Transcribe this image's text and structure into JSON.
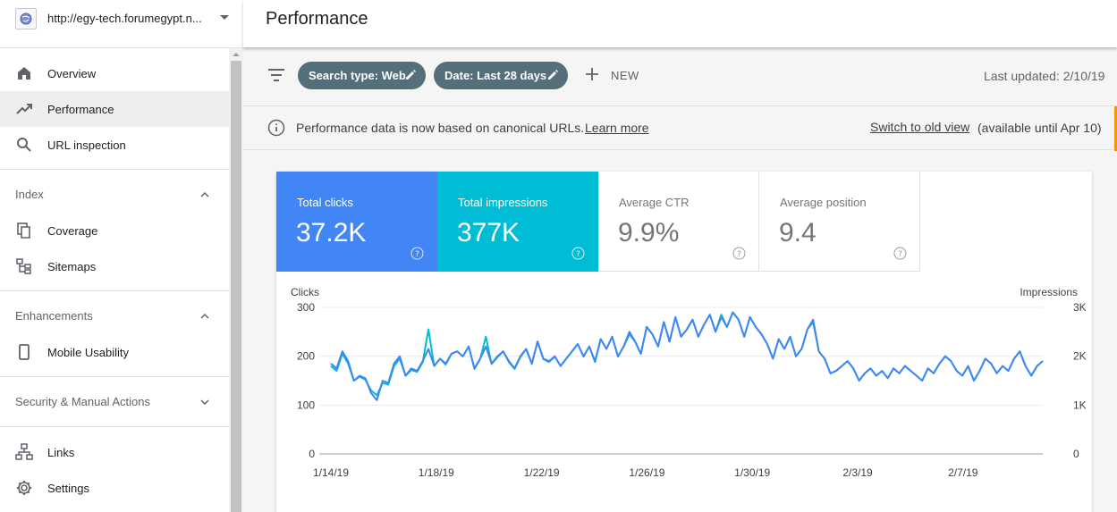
{
  "sidebar": {
    "property_url": "http://egy-tech.forumegypt.n...",
    "items": [
      {
        "label": "Overview",
        "icon": "home-icon"
      },
      {
        "label": "Performance",
        "icon": "trending-up-icon",
        "active": true
      },
      {
        "label": "URL inspection",
        "icon": "search-icon"
      }
    ],
    "sections": {
      "index": {
        "label": "Index",
        "items": [
          {
            "label": "Coverage",
            "icon": "copy-icon"
          },
          {
            "label": "Sitemaps",
            "icon": "sitemap-icon"
          }
        ]
      },
      "enhancements": {
        "label": "Enhancements",
        "items": [
          {
            "label": "Mobile Usability",
            "icon": "phone-icon"
          }
        ]
      },
      "security": {
        "label": "Security & Manual Actions"
      }
    },
    "bottom_items": [
      {
        "label": "Links",
        "icon": "links-icon"
      },
      {
        "label": "Settings",
        "icon": "gear-icon"
      }
    ]
  },
  "header": {
    "title": "Performance"
  },
  "toolbar": {
    "chip_search_type": "Search type: Web",
    "chip_date": "Date: Last 28 days",
    "new_label": "NEW",
    "last_updated": "Last updated: 2/10/19"
  },
  "notice": {
    "message": "Performance data is now based on canonical URLs.",
    "learn_more": "Learn more",
    "switch_label": "Switch to old view",
    "availability": "(available until Apr 10)"
  },
  "metrics": {
    "clicks": {
      "label": "Total clicks",
      "value": "37.2K"
    },
    "impressions": {
      "label": "Total impressions",
      "value": "377K"
    },
    "ctr": {
      "label": "Average CTR",
      "value": "9.9%"
    },
    "position": {
      "label": "Average position",
      "value": "9.4"
    }
  },
  "colors": {
    "clicks": "#4285f4",
    "impressions": "#00bcd4",
    "chip": "#546e7a"
  },
  "chart_data": {
    "type": "line",
    "left_axis_label": "Clicks",
    "right_axis_label": "Impressions",
    "left_ticks": [
      "300",
      "200",
      "100",
      "0"
    ],
    "right_ticks": [
      "3K",
      "2K",
      "1K",
      "0"
    ],
    "ylim": [
      0,
      300
    ],
    "x_tick_labels": [
      "1/14/19",
      "1/18/19",
      "1/22/19",
      "1/26/19",
      "1/30/19",
      "2/3/19",
      "2/7/19"
    ],
    "grid": true,
    "series": [
      {
        "key": "clicks",
        "color": "#4285f4",
        "values": [
          185,
          175,
          210,
          190,
          150,
          160,
          155,
          125,
          110,
          150,
          145,
          185,
          200,
          160,
          175,
          170,
          190,
          215,
          180,
          195,
          185,
          205,
          210,
          200,
          220,
          175,
          195,
          220,
          185,
          200,
          210,
          190,
          175,
          200,
          215,
          185,
          230,
          195,
          190,
          200,
          180,
          195,
          210,
          225,
          200,
          220,
          190,
          235,
          215,
          240,
          200,
          220,
          250,
          230,
          205,
          260,
          245,
          220,
          270,
          230,
          280,
          240,
          255,
          275,
          240,
          265,
          285,
          250,
          280,
          260,
          290,
          275,
          240,
          280,
          260,
          245,
          225,
          195,
          235,
          215,
          240,
          200,
          215,
          255,
          275,
          210,
          195,
          165,
          170,
          180,
          190,
          175,
          150,
          165,
          175,
          160,
          170,
          155,
          175,
          165,
          180,
          170,
          160,
          150,
          175,
          165,
          185,
          200,
          190,
          170,
          160,
          180,
          150,
          170,
          195,
          185,
          165,
          180,
          170,
          195,
          210,
          180,
          160,
          180,
          190
        ]
      },
      {
        "key": "impressions",
        "color": "#00bcd4",
        "values": [
          1800,
          1700,
          2050,
          1850,
          1500,
          1580,
          1520,
          1300,
          1200,
          1450,
          1420,
          1800,
          1950,
          1600,
          1720,
          1680,
          1880,
          2550,
          1800,
          1950,
          1830,
          2050,
          2100,
          2000,
          2200,
          1740,
          1940,
          2400,
          1840,
          1980,
          2100,
          1880,
          1740,
          1980,
          2150,
          1840,
          2300,
          1940,
          1880,
          1990,
          1800,
          1950,
          2100,
          2250,
          1990,
          2200,
          1880,
          2350,
          2150,
          2400,
          1990,
          2200,
          2450,
          2300,
          2050,
          2600,
          2450,
          2200,
          2700,
          2300,
          2800,
          2400,
          2550,
          2750,
          2400,
          2650,
          2850,
          2500,
          2850,
          2600,
          2900,
          2750,
          2400,
          2800,
          2600,
          2450,
          2250,
          1950,
          2350,
          2150,
          2400,
          2000,
          2150,
          2550,
          2700,
          2100,
          1950,
          1650,
          1700,
          1800,
          1900,
          1750,
          1500,
          1650,
          1750,
          1600,
          1700,
          1550,
          1750,
          1650,
          1800,
          1700,
          1600,
          1500,
          1750,
          1650,
          1850,
          2000,
          1900,
          1700,
          1600,
          1800,
          1500,
          1700,
          1950,
          1850,
          1650,
          1800,
          1700,
          1950,
          2100,
          1800,
          1600,
          1800,
          1900
        ]
      }
    ]
  }
}
